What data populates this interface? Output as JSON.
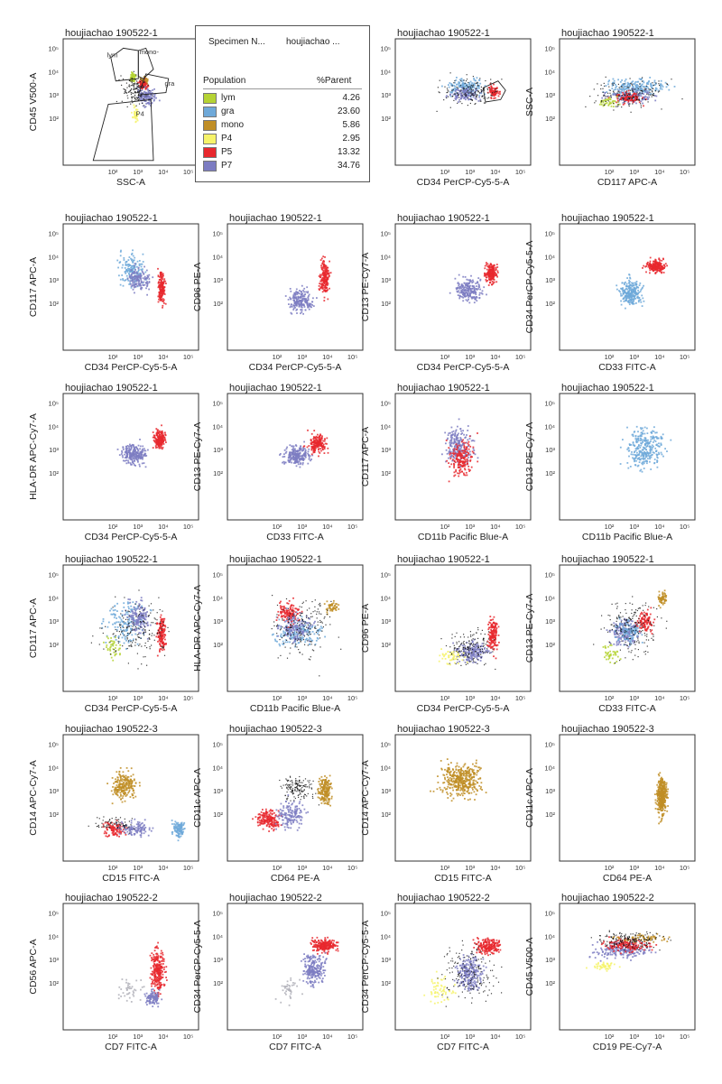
{
  "populations": [
    {
      "name": "lym",
      "color": "#b5d334",
      "percent_parent": "4.26"
    },
    {
      "name": "gra",
      "color": "#6fa9d9",
      "percent_parent": "23.60"
    },
    {
      "name": "mono",
      "color": "#c08e26",
      "percent_parent": "5.86"
    },
    {
      "name": "P4",
      "color": "#f6f36a",
      "percent_parent": "2.95"
    },
    {
      "name": "P5",
      "color": "#e8282e",
      "percent_parent": "13.32"
    },
    {
      "name": "P7",
      "color": "#7c7cc2",
      "percent_parent": "34.76"
    }
  ],
  "legend": {
    "specimen_label": "Specimen N...",
    "specimen_value": "houjiachao ...",
    "col_population": "Population",
    "col_parent": "%Parent"
  },
  "chart_data": [
    {
      "type": "scatter",
      "title": "houjiachao 190522-1",
      "xlabel": "SSC-A",
      "ylabel": "CD45 V500-A",
      "gates": [
        "lym",
        "mono-",
        "gra",
        "P4"
      ],
      "clusters": [
        {
          "pop": "lym",
          "x": [
            2.6,
            2.9
          ],
          "y": [
            3.5,
            4.0
          ],
          "n": 80
        },
        {
          "pop": "mono",
          "x": [
            3.0,
            3.4
          ],
          "y": [
            3.4,
            3.9
          ],
          "n": 60
        },
        {
          "pop": "P5",
          "x": [
            2.9,
            3.4
          ],
          "y": [
            3.2,
            3.7
          ],
          "n": 70
        },
        {
          "pop": "P7",
          "x": [
            2.8,
            3.8
          ],
          "y": [
            2.5,
            3.5
          ],
          "n": 120
        },
        {
          "pop": "P4",
          "x": [
            2.7,
            3.0
          ],
          "y": [
            1.8,
            2.7
          ],
          "n": 40
        },
        {
          "pop": "black",
          "x": [
            2.1,
            3.6
          ],
          "y": [
            2.4,
            4.0
          ],
          "n": 140
        }
      ]
    },
    {
      "type": "scatter",
      "title": "houjiachao 190522-1",
      "xlabel": "CD34 PerCP-Cy5-5-A",
      "ylabel": "SSC-A",
      "clusters": [
        {
          "pop": "gra",
          "x": [
            1.8,
            3.8
          ],
          "y": [
            2.9,
            3.8
          ],
          "n": 160
        },
        {
          "pop": "P7",
          "x": [
            2.0,
            3.5
          ],
          "y": [
            2.7,
            3.4
          ],
          "n": 110
        },
        {
          "pop": "P5",
          "x": [
            3.6,
            4.2
          ],
          "y": [
            2.9,
            3.5
          ],
          "n": 70
        },
        {
          "pop": "black",
          "x": [
            1.5,
            4.4
          ],
          "y": [
            2.4,
            3.9
          ],
          "n": 150
        }
      ]
    },
    {
      "type": "scatter",
      "title": "houjiachao 190522-1",
      "xlabel": "CD117 APC-A",
      "ylabel": "SSC-A",
      "clusters": [
        {
          "pop": "gra",
          "x": [
            1.5,
            4.5
          ],
          "y": [
            2.9,
            3.8
          ],
          "n": 200
        },
        {
          "pop": "P7",
          "x": [
            1.5,
            4.0
          ],
          "y": [
            2.6,
            3.3
          ],
          "n": 140
        },
        {
          "pop": "P5",
          "x": [
            2.0,
            3.5
          ],
          "y": [
            2.6,
            3.2
          ],
          "n": 90
        },
        {
          "pop": "lym",
          "x": [
            1.5,
            2.5
          ],
          "y": [
            2.5,
            3.0
          ],
          "n": 40
        },
        {
          "pop": "black",
          "x": [
            1.0,
            4.7
          ],
          "y": [
            2.3,
            3.9
          ],
          "n": 160
        }
      ]
    },
    {
      "type": "scatter",
      "title": "houjiachao 190522-1",
      "xlabel": "CD34 PerCP-Cy5-5-A",
      "ylabel": "CD117 APC-A",
      "clusters": [
        {
          "pop": "gra",
          "x": [
            2.0,
            3.4
          ],
          "y": [
            2.5,
            4.3
          ],
          "n": 150
        },
        {
          "pop": "P7",
          "x": [
            2.4,
            3.6
          ],
          "y": [
            2.4,
            3.8
          ],
          "n": 140
        },
        {
          "pop": "P5",
          "x": [
            3.7,
            4.1
          ],
          "y": [
            1.8,
            3.6
          ],
          "n": 160
        }
      ]
    },
    {
      "type": "scatter",
      "title": "houjiachao 190522-1",
      "xlabel": "CD34 PerCP-Cy5-5-A",
      "ylabel": "CD96 PE-A",
      "clusters": [
        {
          "pop": "P7",
          "x": [
            2.3,
            3.5
          ],
          "y": [
            1.5,
            2.8
          ],
          "n": 200
        },
        {
          "pop": "P5",
          "x": [
            3.6,
            4.1
          ],
          "y": [
            2.2,
            4.0
          ],
          "n": 190
        }
      ]
    },
    {
      "type": "scatter",
      "title": "houjiachao 190522-1",
      "xlabel": "CD34 PerCP-Cy5-5-A",
      "ylabel": "CD13 PE-Cy7-A",
      "clusters": [
        {
          "pop": "P7",
          "x": [
            2.2,
            3.6
          ],
          "y": [
            2.0,
            3.2
          ],
          "n": 210
        },
        {
          "pop": "P5",
          "x": [
            3.5,
            4.1
          ],
          "y": [
            2.8,
            3.8
          ],
          "n": 190
        }
      ]
    },
    {
      "type": "scatter",
      "title": "houjiachao 190522-1",
      "xlabel": "CD33 FITC-A",
      "ylabel": "CD34 PerCP-Cy5-5-A",
      "clusters": [
        {
          "pop": "gra",
          "x": [
            2.2,
            3.4
          ],
          "y": [
            1.8,
            3.2
          ],
          "n": 250
        },
        {
          "pop": "P5",
          "x": [
            3.3,
            4.3
          ],
          "y": [
            3.3,
            4.0
          ],
          "n": 200
        }
      ]
    },
    {
      "type": "scatter",
      "title": "houjiachao 190522-1",
      "xlabel": "CD34 PerCP-Cy5-5-A",
      "ylabel": "HLA-DR APC-Cy7-A",
      "clusters": [
        {
          "pop": "P7",
          "x": [
            2.2,
            3.4
          ],
          "y": [
            2.3,
            3.4
          ],
          "n": 230
        },
        {
          "pop": "P5",
          "x": [
            3.5,
            4.1
          ],
          "y": [
            3.0,
            4.0
          ],
          "n": 180
        }
      ]
    },
    {
      "type": "scatter",
      "title": "houjiachao 190522-1",
      "xlabel": "CD33 FITC-A",
      "ylabel": "CD13 PE-Cy7-A",
      "clusters": [
        {
          "pop": "P7",
          "x": [
            2.0,
            3.4
          ],
          "y": [
            2.2,
            3.4
          ],
          "n": 230
        },
        {
          "pop": "P5",
          "x": [
            3.1,
            4.0
          ],
          "y": [
            2.8,
            3.8
          ],
          "n": 180
        }
      ]
    },
    {
      "type": "scatter",
      "title": "houjiachao 190522-1",
      "xlabel": "CD11b Pacific Blue-A",
      "ylabel": "CD117 APC-A",
      "clusters": [
        {
          "pop": "P7",
          "x": [
            1.8,
            3.2
          ],
          "y": [
            2.2,
            4.2
          ],
          "n": 220
        },
        {
          "pop": "P5",
          "x": [
            2.0,
            3.2
          ],
          "y": [
            1.5,
            3.8
          ],
          "n": 180
        }
      ]
    },
    {
      "type": "scatter",
      "title": "houjiachao 190522-1",
      "xlabel": "CD11b Pacific Blue-A",
      "ylabel": "CD13 PE-Cy7-A",
      "clusters": [
        {
          "pop": "gra",
          "x": [
            2.5,
            4.3
          ],
          "y": [
            2.0,
            4.2
          ],
          "n": 300
        }
      ]
    },
    {
      "type": "scatter",
      "title": "houjiachao 190522-1",
      "xlabel": "CD34 PerCP-Cy5-5-A",
      "ylabel": "CD117 APC-A",
      "clusters": [
        {
          "pop": "gra",
          "x": [
            1.5,
            3.5
          ],
          "y": [
            1.8,
            4.0
          ],
          "n": 150
        },
        {
          "pop": "P7",
          "x": [
            2.4,
            3.6
          ],
          "y": [
            2.3,
            4.1
          ],
          "n": 150
        },
        {
          "pop": "P5",
          "x": [
            3.7,
            4.1
          ],
          "y": [
            1.5,
            3.5
          ],
          "n": 140
        },
        {
          "pop": "lym",
          "x": [
            1.5,
            2.5
          ],
          "y": [
            1.3,
            2.5
          ],
          "n": 40
        },
        {
          "pop": "black",
          "x": [
            1.2,
            4.4
          ],
          "y": [
            1.0,
            4.3
          ],
          "n": 180
        }
      ]
    },
    {
      "type": "scatter",
      "title": "houjiachao 190522-1",
      "xlabel": "CD11b Pacific Blue-A",
      "ylabel": "HLA-DR APC-Cy7-A",
      "clusters": [
        {
          "pop": "gra",
          "x": [
            1.5,
            4.0
          ],
          "y": [
            1.8,
            3.2
          ],
          "n": 160
        },
        {
          "pop": "P5",
          "x": [
            1.8,
            3.0
          ],
          "y": [
            2.8,
            4.0
          ],
          "n": 120
        },
        {
          "pop": "P7",
          "x": [
            1.8,
            3.5
          ],
          "y": [
            2.0,
            3.6
          ],
          "n": 140
        },
        {
          "pop": "mono",
          "x": [
            3.8,
            4.5
          ],
          "y": [
            3.3,
            4.0
          ],
          "n": 50
        },
        {
          "pop": "black",
          "x": [
            1.5,
            4.5
          ],
          "y": [
            1.0,
            4.4
          ],
          "n": 180
        }
      ]
    },
    {
      "type": "scatter",
      "title": "houjiachao 190522-1",
      "xlabel": "CD34 PerCP-Cy5-5-A",
      "ylabel": "CD96 PE-A",
      "clusters": [
        {
          "pop": "P7",
          "x": [
            2.2,
            3.8
          ],
          "y": [
            1.2,
            2.2
          ],
          "n": 180
        },
        {
          "pop": "P5",
          "x": [
            3.6,
            4.1
          ],
          "y": [
            1.5,
            3.4
          ],
          "n": 150
        },
        {
          "pop": "P4",
          "x": [
            1.5,
            3.0
          ],
          "y": [
            1.0,
            2.0
          ],
          "n": 50
        },
        {
          "pop": "black",
          "x": [
            1.8,
            4.1
          ],
          "y": [
            1.0,
            2.8
          ],
          "n": 150
        }
      ]
    },
    {
      "type": "scatter",
      "title": "houjiachao 190522-1",
      "xlabel": "CD33 FITC-A",
      "ylabel": "CD13 PE-Cy7-A",
      "clusters": [
        {
          "pop": "P7",
          "x": [
            1.8,
            3.3
          ],
          "y": [
            1.8,
            3.3
          ],
          "n": 180
        },
        {
          "pop": "gra",
          "x": [
            2.0,
            3.5
          ],
          "y": [
            1.8,
            3.4
          ],
          "n": 100
        },
        {
          "pop": "P5",
          "x": [
            3.0,
            3.8
          ],
          "y": [
            2.5,
            3.6
          ],
          "n": 100
        },
        {
          "pop": "mono",
          "x": [
            3.8,
            4.3
          ],
          "y": [
            3.6,
            4.4
          ],
          "n": 60
        },
        {
          "pop": "lym",
          "x": [
            1.6,
            2.5
          ],
          "y": [
            1.2,
            2.2
          ],
          "n": 40
        },
        {
          "pop": "black",
          "x": [
            1.5,
            4.2
          ],
          "y": [
            1.2,
            4.3
          ],
          "n": 180
        }
      ]
    },
    {
      "type": "scatter",
      "title": "houjiachao 190522-3",
      "xlabel": "CD15 FITC-A",
      "ylabel": "CD14 APC-Cy7-A",
      "clusters": [
        {
          "pop": "mono",
          "x": [
            1.8,
            3.0
          ],
          "y": [
            2.5,
            4.0
          ],
          "n": 220
        },
        {
          "pop": "P5",
          "x": [
            1.5,
            2.5
          ],
          "y": [
            1.0,
            1.8
          ],
          "n": 90
        },
        {
          "pop": "P7",
          "x": [
            2.0,
            3.6
          ],
          "y": [
            1.0,
            1.8
          ],
          "n": 110
        },
        {
          "pop": "gra",
          "x": [
            4.3,
            4.9
          ],
          "y": [
            1.0,
            1.8
          ],
          "n": 120
        },
        {
          "pop": "black",
          "x": [
            1.0,
            3.0
          ],
          "y": [
            1.2,
            2.0
          ],
          "n": 70
        }
      ]
    },
    {
      "type": "scatter",
      "title": "houjiachao 190522-3",
      "xlabel": "CD64 PE-A",
      "ylabel": "CD11c APC-A",
      "clusters": [
        {
          "pop": "P5",
          "x": [
            1.0,
            2.2
          ],
          "y": [
            1.3,
            2.3
          ],
          "n": 180
        },
        {
          "pop": "P7",
          "x": [
            1.8,
            3.2
          ],
          "y": [
            1.2,
            2.8
          ],
          "n": 150
        },
        {
          "pop": "mono",
          "x": [
            3.5,
            4.2
          ],
          "y": [
            2.3,
            3.8
          ],
          "n": 180
        },
        {
          "pop": "black",
          "x": [
            2.0,
            3.6
          ],
          "y": [
            2.5,
            3.8
          ],
          "n": 150
        }
      ]
    },
    {
      "type": "scatter",
      "title": "houjiachao 190522-3",
      "xlabel": "CD15 FITC-A",
      "ylabel": "CD14 APC-Cy7-A",
      "clusters": [
        {
          "pop": "mono",
          "x": [
            1.6,
            3.6
          ],
          "y": [
            2.6,
            4.4
          ],
          "n": 400
        }
      ]
    },
    {
      "type": "scatter",
      "title": "houjiachao 190522-3",
      "xlabel": "CD64 PE-A",
      "ylabel": "CD11c APC-A",
      "clusters": [
        {
          "pop": "mono",
          "x": [
            3.8,
            4.3
          ],
          "y": [
            1.8,
            3.8
          ],
          "n": 350
        }
      ]
    },
    {
      "type": "scatter",
      "title": "houjiachao 190522-2",
      "xlabel": "CD7 FITC-A",
      "ylabel": "CD56 APC-A",
      "clusters": [
        {
          "pop": "P5",
          "x": [
            3.4,
            4.1
          ],
          "y": [
            1.2,
            3.8
          ],
          "n": 250
        },
        {
          "pop": "P7",
          "x": [
            3.2,
            3.9
          ],
          "y": [
            1.0,
            1.8
          ],
          "n": 100
        },
        {
          "pop": "grey",
          "x": [
            2.0,
            3.3
          ],
          "y": [
            1.0,
            2.5
          ],
          "n": 40
        }
      ]
    },
    {
      "type": "scatter",
      "title": "houjiachao 190522-2",
      "xlabel": "CD7 FITC-A",
      "ylabel": "CD34 PerCP-Cy5-5-A",
      "clusters": [
        {
          "pop": "P5",
          "x": [
            3.2,
            4.5
          ],
          "y": [
            3.3,
            4.0
          ],
          "n": 220
        },
        {
          "pop": "P7",
          "x": [
            2.8,
            4.0
          ],
          "y": [
            1.8,
            3.4
          ],
          "n": 220
        },
        {
          "pop": "grey",
          "x": [
            1.8,
            3.0
          ],
          "y": [
            1.2,
            2.5
          ],
          "n": 40
        }
      ]
    },
    {
      "type": "scatter",
      "title": "houjiachao 190522-2",
      "xlabel": "CD7 FITC-A",
      "ylabel": "CD34 PerCP-Cy5-5-A",
      "clusters": [
        {
          "pop": "P5",
          "x": [
            3.0,
            4.3
          ],
          "y": [
            3.2,
            4.0
          ],
          "n": 180
        },
        {
          "pop": "P7",
          "x": [
            2.3,
            3.6
          ],
          "y": [
            1.5,
            3.4
          ],
          "n": 220
        },
        {
          "pop": "P4",
          "x": [
            1.0,
            2.5
          ],
          "y": [
            1.0,
            2.5
          ],
          "n": 60
        },
        {
          "pop": "black",
          "x": [
            1.5,
            4.4
          ],
          "y": [
            1.0,
            3.9
          ],
          "n": 170
        }
      ]
    },
    {
      "type": "scatter",
      "title": "houjiachao 190522-2",
      "xlabel": "CD19 PE-Cy7-A",
      "ylabel": "CD45 V500-A",
      "clusters": [
        {
          "pop": "P7",
          "x": [
            1.0,
            4.0
          ],
          "y": [
            3.0,
            3.9
          ],
          "n": 200
        },
        {
          "pop": "P5",
          "x": [
            1.5,
            3.8
          ],
          "y": [
            3.3,
            4.0
          ],
          "n": 150
        },
        {
          "pop": "mono",
          "x": [
            2.0,
            4.5
          ],
          "y": [
            3.7,
            4.2
          ],
          "n": 60
        },
        {
          "pop": "P4",
          "x": [
            1.0,
            2.5
          ],
          "y": [
            2.5,
            3.0
          ],
          "n": 50
        },
        {
          "pop": "black",
          "x": [
            1.0,
            4.4
          ],
          "y": [
            3.4,
            4.3
          ],
          "n": 170
        }
      ]
    }
  ],
  "axis": {
    "ticks": [
      "10²",
      "10³",
      "10⁴",
      "10⁵"
    ],
    "ymax_tick": "10⁵"
  }
}
